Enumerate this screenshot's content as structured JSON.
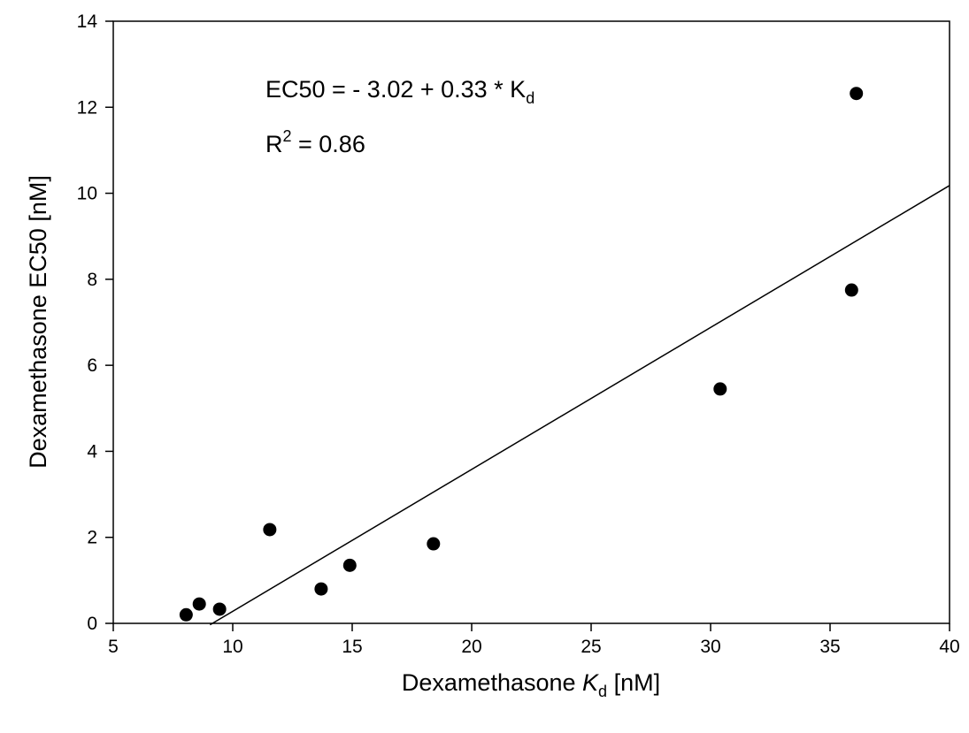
{
  "chart_data": {
    "type": "scatter",
    "xlabel": {
      "main": "Dexamethasone ",
      "italic": "K",
      "sub": "d",
      "unit": " [nM]"
    },
    "ylabel": "Dexamethasone EC50 [nM]",
    "xlim": [
      5,
      40
    ],
    "ylim": [
      0,
      14
    ],
    "xticks": [
      5,
      10,
      15,
      20,
      25,
      30,
      35,
      40
    ],
    "yticks": [
      0,
      2,
      4,
      6,
      8,
      10,
      12,
      14
    ],
    "grid": false,
    "points": [
      {
        "x": 8.05,
        "y": 0.2
      },
      {
        "x": 8.6,
        "y": 0.45
      },
      {
        "x": 9.45,
        "y": 0.33
      },
      {
        "x": 11.55,
        "y": 2.18
      },
      {
        "x": 13.7,
        "y": 0.8
      },
      {
        "x": 14.9,
        "y": 1.35
      },
      {
        "x": 18.4,
        "y": 1.85
      },
      {
        "x": 30.4,
        "y": 5.45
      },
      {
        "x": 35.9,
        "y": 7.75
      },
      {
        "x": 36.1,
        "y": 12.32
      }
    ],
    "fit": {
      "intercept": -3.02,
      "slope": 0.33,
      "x_range": [
        9.05,
        40
      ]
    },
    "annotations": {
      "equation": {
        "text": "EC50 = - 3.02 + 0.33 * K",
        "sub": "d"
      },
      "r2": {
        "prefix": "R",
        "sup": "2",
        "suffix": " = 0.86"
      }
    }
  }
}
